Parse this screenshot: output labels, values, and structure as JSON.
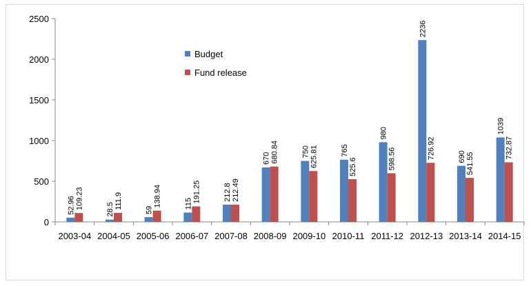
{
  "chart_data": {
    "type": "bar",
    "categories": [
      "2003-04",
      "2004-05",
      "2005-06",
      "2006-07",
      "2007-08",
      "2008-09",
      "2009-10",
      "2010-11",
      "2011-12",
      "2012-13",
      "2013-14",
      "2014-15"
    ],
    "series": [
      {
        "name": "Budget",
        "color": "#4f81bd",
        "values": [
          52.96,
          28.5,
          59,
          115,
          212.8,
          670,
          750,
          765,
          980,
          2236,
          690,
          1039
        ],
        "labels": [
          "52.96",
          "28.5",
          "59",
          "115",
          "212.8",
          "670",
          "750",
          "765",
          "980",
          "2236",
          "690",
          "1039"
        ]
      },
      {
        "name": "Fund release",
        "color": "#c0504d",
        "values": [
          109.23,
          111.9,
          138.94,
          191.25,
          212.49,
          680.84,
          625.81,
          525.6,
          598.56,
          726.92,
          541.55,
          732.87
        ],
        "labels": [
          "109.23",
          "111.9",
          "138.94",
          "191.25",
          "212.49",
          "680.84",
          "625.81",
          "525.6",
          "598.56",
          "726.92",
          "541.55",
          "732.87"
        ]
      }
    ],
    "ylim": [
      0,
      2500
    ],
    "yticks": [
      "0",
      "500",
      "1000",
      "1500",
      "2000",
      "2500"
    ],
    "legend_position": "top-center",
    "grid": false,
    "title": "",
    "xlabel": "",
    "ylabel": ""
  }
}
